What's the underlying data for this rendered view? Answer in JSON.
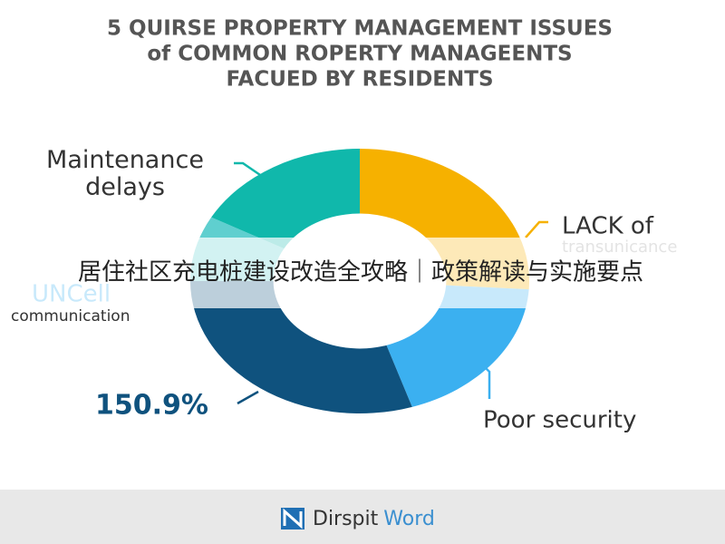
{
  "title_lines": [
    "5 QUIRSE PROPERTY MANAGEMENT ISSUES",
    "of COMMON ROPERTY MANAGEENTS",
    "FACUED BY RESIDENTS"
  ],
  "chart_data": {
    "type": "pie",
    "categories": [
      "LACK of",
      "Poor security",
      null,
      "UNCell",
      "Maintenance delays"
    ],
    "sublabels": [
      "transunicance",
      null,
      null,
      "communication",
      null
    ],
    "values": [
      26,
      19,
      30,
      8,
      17
    ],
    "colors": [
      "#f6b100",
      "#3bb0f0",
      "#0f527e",
      "#5fcfcf",
      "#10b8ab"
    ],
    "annotation": "150.9%"
  },
  "banner": "居住社区充电桩建设改造全攻略｜政策解读与实施要点",
  "footer": {
    "brand": "Dirspit",
    "brand_accent": "Word"
  }
}
